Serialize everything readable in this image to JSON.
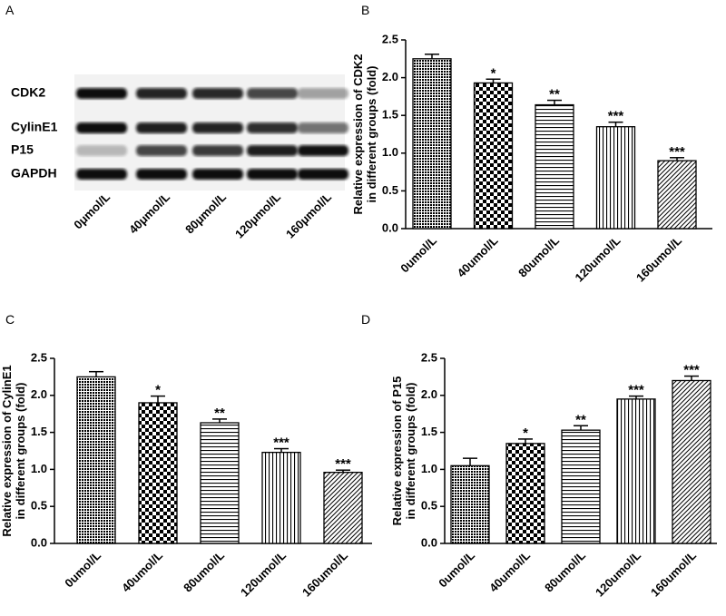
{
  "blot": {
    "panel_label": "A",
    "rows": [
      "CDK2",
      "CylinE1",
      "P15",
      "GAPDH"
    ],
    "lanes": [
      "0μmol/L",
      "40μmol/L",
      "80μmol/L",
      "120μmol/L",
      "160μmol/L"
    ]
  },
  "chart_data": [
    {
      "type": "bar",
      "panel_label": "B",
      "ylabel": [
        "Relative expression of CDK2",
        "in different groups (fold)"
      ],
      "categories": [
        "0umol/L",
        "40umol/L",
        "80umol/L",
        "120umol/L",
        "160umol/L"
      ],
      "values": [
        2.25,
        1.93,
        1.64,
        1.35,
        0.9
      ],
      "errors": [
        0.06,
        0.05,
        0.06,
        0.06,
        0.04
      ],
      "significance": [
        null,
        "*",
        "**",
        "***",
        "***"
      ],
      "patterns": [
        "crosshatch",
        "checker",
        "horizontal",
        "vertical",
        "diagonal"
      ],
      "color": "#000000",
      "ylim": [
        0,
        2.5
      ],
      "yticks": [
        {
          "value": 0,
          "label": "0.0"
        },
        0.5,
        {
          "value": 1,
          "label": "1.0"
        },
        1.5,
        {
          "value": 2,
          "label": "2.0"
        },
        2.5
      ]
    },
    {
      "type": "bar",
      "panel_label": "C",
      "ylabel": [
        "Relative expression of CylinE1",
        "in different groups (fold)"
      ],
      "categories": [
        "0umol/L",
        "40umol/L",
        "80umol/L",
        "120umol/L",
        "160umol/L"
      ],
      "values": [
        2.25,
        1.9,
        1.63,
        1.23,
        0.96
      ],
      "errors": [
        0.07,
        0.09,
        0.05,
        0.05,
        0.03
      ],
      "significance": [
        null,
        "*",
        "**",
        "***",
        "***"
      ],
      "patterns": [
        "crosshatch",
        "checker",
        "horizontal",
        "vertical",
        "diagonal"
      ],
      "color": "#000000",
      "ylim": [
        0,
        2.5
      ],
      "yticks": [
        {
          "value": 0,
          "label": "0.0"
        },
        0.5,
        {
          "value": 1,
          "label": "1.0"
        },
        1.5,
        {
          "value": 2,
          "label": "2.0"
        },
        2.5
      ]
    },
    {
      "type": "bar",
      "panel_label": "D",
      "ylabel": [
        "Relative expression of P15",
        "in different groups (fold)"
      ],
      "categories": [
        "0umol/L",
        "40umol/L",
        "80umol/L",
        "120umol/L",
        "160umol/L"
      ],
      "values": [
        1.05,
        1.35,
        1.53,
        1.95,
        2.2
      ],
      "errors": [
        0.1,
        0.06,
        0.06,
        0.04,
        0.06
      ],
      "significance": [
        null,
        "*",
        "**",
        "***",
        "***"
      ],
      "patterns": [
        "crosshatch",
        "checker",
        "horizontal",
        "vertical",
        "diagonal"
      ],
      "color": "#000000",
      "ylim": [
        0,
        2.5
      ],
      "yticks": [
        {
          "value": 0,
          "label": "0.0"
        },
        0.5,
        {
          "value": 1,
          "label": "1.0"
        },
        1.5,
        {
          "value": 2,
          "label": "2.0"
        },
        2.5
      ]
    }
  ]
}
